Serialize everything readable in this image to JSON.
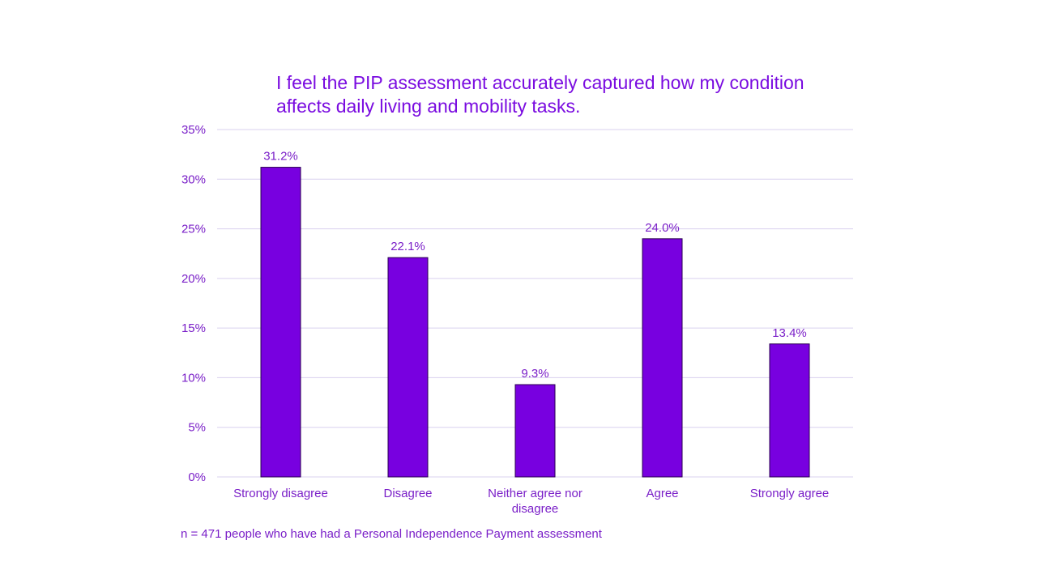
{
  "chart_data": {
    "type": "bar",
    "title": "I feel the PIP assessment accurately captured how my condition affects daily living and mobility tasks.",
    "categories": [
      "Strongly disagree",
      "Disagree",
      "Neither agree nor disagree",
      "Agree",
      "Strongly agree"
    ],
    "values": [
      31.2,
      22.1,
      9.3,
      24.0,
      13.4
    ],
    "data_labels": [
      "31.2%",
      "22.1%",
      "9.3%",
      "24.0%",
      "13.4%"
    ],
    "ylim": [
      0,
      35
    ],
    "yticks": [
      "0%",
      "5%",
      "10%",
      "15%",
      "20%",
      "25%",
      "30%",
      "35%"
    ],
    "grid": true,
    "bar_color": "#7800e0",
    "text_color": "#7a1fc8"
  },
  "note": "n = 471 people who have had a Personal Independence Payment assessment"
}
